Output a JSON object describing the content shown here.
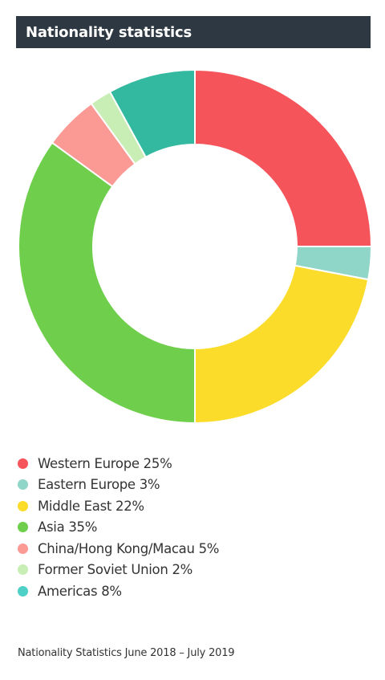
{
  "header": {
    "title": "Nationality statistics"
  },
  "chart_data": {
    "type": "pie",
    "variant": "donut",
    "title": "Nationality statistics",
    "legend_position": "bottom",
    "slices": [
      {
        "label": "Western Europe",
        "value": 25,
        "legend_text": "Western Europe 25%",
        "color": "#f5545a"
      },
      {
        "label": "Eastern Europe",
        "value": 3,
        "legend_text": "Eastern Europe 3%",
        "color": "#8fd6c8"
      },
      {
        "label": "Middle East",
        "value": 22,
        "legend_text": "Middle East 22%",
        "color": "#fbdc2a"
      },
      {
        "label": "Asia",
        "value": 35,
        "legend_text": "Asia 35%",
        "color": "#6fcf4d"
      },
      {
        "label": "China/Hong Kong/Macau",
        "value": 5,
        "legend_text": "China/Hong Kong/Macau 5%",
        "color": "#fb9995"
      },
      {
        "label": "Former Soviet Union",
        "value": 2,
        "legend_text": "Former Soviet Union 2%",
        "color": "#c9eeb5"
      },
      {
        "label": "Americas",
        "value": 8,
        "legend_text": "Americas 8%",
        "color": "#33b9a0"
      }
    ],
    "legend_dot_colors": [
      "#f5545a",
      "#8fd6c8",
      "#fbdc2a",
      "#6fcf4d",
      "#fb9995",
      "#c9eeb5",
      "#4fd0c7"
    ]
  },
  "footnote": "Nationality Statistics June 2018 – July 2019"
}
